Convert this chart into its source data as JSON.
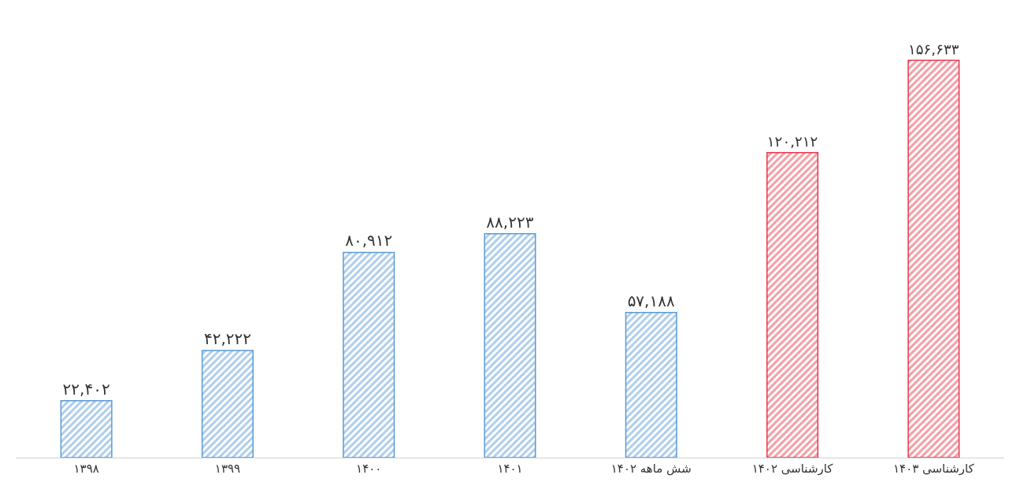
{
  "chart_data": {
    "type": "bar",
    "categories": [
      "۱۳۹۸",
      "۱۳۹۹",
      "۱۴۰۰",
      "۱۴۰۱",
      "شش ماهه ۱۴۰۲",
      "کارشناسی ۱۴۰۲",
      "کارشناسی ۱۴۰۳"
    ],
    "values": [
      22402,
      42222,
      80912,
      88223,
      57188,
      120212,
      156633
    ],
    "value_labels": [
      "۲۲,۴۰۲",
      "۴۲,۲۲۲",
      "۸۰,۹۱۲",
      "۸۸,۲۲۳",
      "۵۷,۱۸۸",
      "۱۲۰,۲۱۲",
      "۱۵۶,۶۳۳"
    ],
    "colors": [
      "#5b9bd5",
      "#5b9bd5",
      "#5b9bd5",
      "#5b9bd5",
      "#5b9bd5",
      "#e8394a",
      "#e8394a"
    ]
  }
}
